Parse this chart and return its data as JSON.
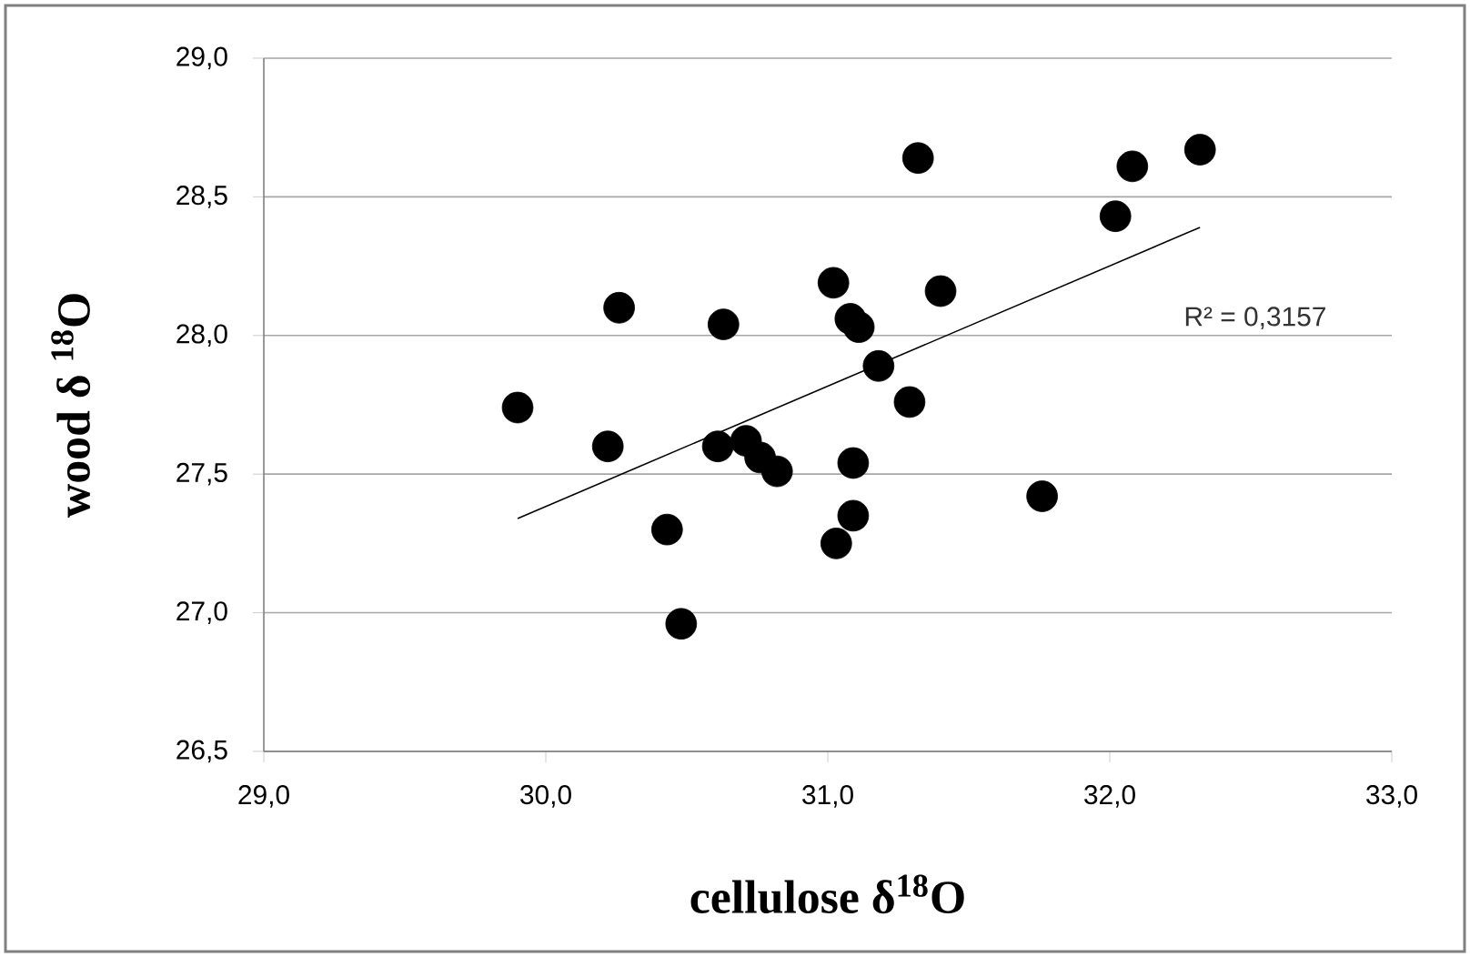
{
  "chart_data": {
    "type": "scatter",
    "xlabel": "cellulose δ$^{18}$O",
    "ylabel": "wood  δ $^{18}$O",
    "series": [
      {
        "color": "#000000",
        "marker": "circle",
        "x": [
          29.9,
          30.26,
          30.63,
          30.22,
          30.43,
          30.48,
          30.61,
          30.71,
          30.76,
          30.82,
          31.02,
          31.08,
          31.11,
          31.09,
          31.09,
          31.03,
          31.18,
          31.29,
          31.32,
          31.4,
          31.76,
          32.02,
          32.08,
          32.32
        ],
        "values": [
          27.74,
          28.1,
          28.04,
          27.6,
          27.3,
          26.96,
          27.6,
          27.62,
          27.56,
          27.51,
          28.19,
          28.06,
          28.03,
          27.54,
          27.35,
          27.25,
          27.89,
          27.76,
          28.64,
          28.16,
          27.42,
          28.43,
          28.61,
          28.67
        ]
      },
      {
        "type": "line",
        "color": "#000000",
        "marker": "none",
        "line_style": "solid",
        "x": [
          29.9,
          32.32
        ],
        "values": [
          27.34,
          28.39
        ]
      }
    ],
    "annotations": [
      "R² = 0,3157"
    ],
    "xlim": [
      29.0,
      33.0
    ],
    "ylim": [
      26.5,
      29.0
    ],
    "xticks": [
      {
        "value": 29.0,
        "label": "29,0"
      },
      {
        "value": 30.0,
        "label": "30,0"
      },
      {
        "value": 31.0,
        "label": "31,0"
      },
      {
        "value": 32.0,
        "label": "32,0"
      },
      {
        "value": 33.0,
        "label": "33,0"
      }
    ],
    "yticks": [
      {
        "value": 26.5,
        "label": "26,5"
      },
      {
        "value": 27.0,
        "label": "27,0"
      },
      {
        "value": 27.5,
        "label": "27,5"
      },
      {
        "value": 28.0,
        "label": "28,0"
      },
      {
        "value": 28.5,
        "label": "28,5"
      },
      {
        "value": 29.0,
        "label": "29,0"
      }
    ],
    "grid": "y"
  }
}
